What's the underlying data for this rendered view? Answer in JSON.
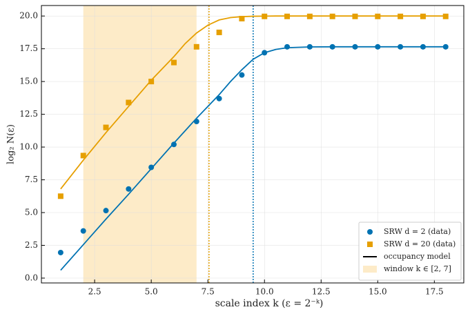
{
  "chart_data": {
    "type": "scatter",
    "xlabel": "scale index k   (ε = 2⁻ᵏ)",
    "ylabel": "log₂ N(ε)",
    "xlim": [
      0.15,
      18.8
    ],
    "ylim": [
      -0.37,
      20.8
    ],
    "xticks": [
      {
        "value": 2.5,
        "label": "2.5"
      },
      {
        "value": 5,
        "label": "5.0"
      },
      {
        "value": 7.5,
        "label": "7.5"
      },
      {
        "value": 10,
        "label": "10.0"
      },
      {
        "value": 12.5,
        "label": "12.5"
      },
      {
        "value": 15,
        "label": "15.0"
      },
      {
        "value": 17.5,
        "label": "17.5"
      }
    ],
    "yticks": [
      {
        "value": 0,
        "label": "0.0"
      },
      {
        "value": 2.5,
        "label": "2.5"
      },
      {
        "value": 5,
        "label": "5.0"
      },
      {
        "value": 7.5,
        "label": "7.5"
      },
      {
        "value": 10,
        "label": "10.0"
      },
      {
        "value": 12.5,
        "label": "12.5"
      },
      {
        "value": 15,
        "label": "15.0"
      },
      {
        "value": 17.5,
        "label": "17.5"
      },
      {
        "value": 20,
        "label": "20.0"
      }
    ],
    "grid": true,
    "legend": "lower right",
    "x": [
      1,
      2,
      3,
      4,
      5,
      6,
      7,
      8,
      9,
      10,
      11,
      12,
      13,
      14,
      15,
      16,
      17,
      18
    ],
    "series": [
      {
        "name": "SRW d = 2 (data)",
        "color": "#0072b2",
        "marker": "circle",
        "values": [
          1.95,
          3.6,
          5.15,
          6.8,
          8.45,
          10.2,
          11.95,
          13.7,
          15.5,
          17.2,
          17.65,
          17.65,
          17.65,
          17.65,
          17.65,
          17.65,
          17.65,
          17.65
        ]
      },
      {
        "name": "SRW d = 20 (data)",
        "color": "#e69f00",
        "marker": "square",
        "values": [
          6.25,
          9.35,
          11.5,
          13.4,
          15.0,
          16.45,
          17.65,
          18.75,
          19.8,
          19.97,
          19.97,
          19.97,
          19.97,
          19.97,
          19.97,
          19.97,
          19.97,
          19.97
        ]
      }
    ],
    "model_name": "occupancy model",
    "model_legend_color": "#000000",
    "model_x": [
      1,
      2,
      3,
      4,
      5,
      6,
      6.5,
      7,
      7.5,
      8,
      8.5,
      9,
      9.5,
      10,
      10.5,
      11,
      12,
      13,
      14,
      15,
      16,
      17,
      18
    ],
    "models": [
      {
        "color": "#0072b2",
        "values": [
          0.6,
          2.55,
          4.5,
          6.4,
          8.35,
          10.3,
          11.25,
          12.2,
          13.1,
          14.0,
          15.0,
          15.9,
          16.7,
          17.2,
          17.45,
          17.58,
          17.64,
          17.65,
          17.65,
          17.65,
          17.65,
          17.65,
          17.65
        ]
      },
      {
        "color": "#e69f00",
        "values": [
          6.8,
          9.0,
          11.1,
          13.1,
          15.1,
          16.9,
          17.9,
          18.7,
          19.3,
          19.7,
          19.88,
          19.95,
          19.98,
          19.99,
          20.0,
          20.0,
          20.0,
          20.0,
          20.0,
          20.0,
          20.0,
          20.0,
          20.0
        ]
      }
    ],
    "window": {
      "label": "window k ∈ [2, 7]",
      "range": [
        2,
        7
      ],
      "color": "#fdebc8"
    },
    "thresholds": [
      {
        "x": 7.55,
        "color": "#e69f00"
      },
      {
        "x": 9.5,
        "color": "#0072b2"
      }
    ]
  }
}
